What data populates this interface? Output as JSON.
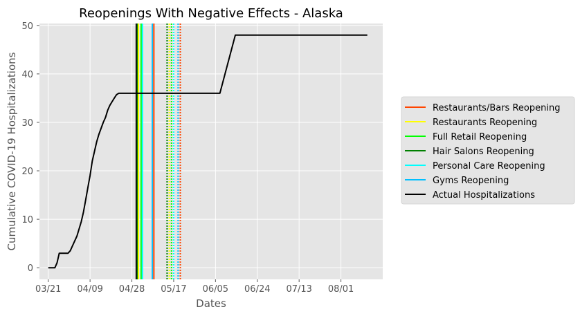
{
  "chart_data": {
    "type": "line",
    "title": "Reopenings With Negative Effects - Alaska",
    "xlabel": "Dates",
    "ylabel": "Cumulative COVID-19 Hospitalizations",
    "ylim": [
      -2.4,
      50.4
    ],
    "yticks": [
      0,
      10,
      20,
      30,
      40,
      50
    ],
    "x_start_date": "2020-03-21",
    "xlim": [
      -4,
      152
    ],
    "xticks": [
      {
        "day": 0,
        "label": "03/21"
      },
      {
        "day": 19,
        "label": "04/09"
      },
      {
        "day": 38,
        "label": "04/28"
      },
      {
        "day": 57,
        "label": "05/17"
      },
      {
        "day": 76,
        "label": "06/05"
      },
      {
        "day": 95,
        "label": "06/24"
      },
      {
        "day": 114,
        "label": "07/13"
      },
      {
        "day": 133,
        "label": "08/01"
      }
    ],
    "grid": true,
    "legend_position": "outside-right",
    "series": [
      {
        "name": "Actual Hospitalizations",
        "color": "#000000",
        "points": [
          [
            0,
            0
          ],
          [
            3,
            0
          ],
          [
            4,
            1
          ],
          [
            5,
            3
          ],
          [
            9,
            3
          ],
          [
            10,
            3.5
          ],
          [
            11,
            4.5
          ],
          [
            12,
            5.5
          ],
          [
            13,
            6.5
          ],
          [
            15,
            9.5
          ],
          [
            16,
            11.5
          ],
          [
            17,
            14
          ],
          [
            18,
            16.5
          ],
          [
            19,
            19
          ],
          [
            20,
            22
          ],
          [
            21,
            24
          ],
          [
            22,
            26
          ],
          [
            23,
            27.5
          ],
          [
            25,
            30
          ],
          [
            26,
            31
          ],
          [
            27,
            32.5
          ],
          [
            28,
            33.5
          ],
          [
            30,
            35
          ],
          [
            31,
            35.7
          ],
          [
            32,
            36
          ],
          [
            78,
            36
          ],
          [
            85,
            48
          ],
          [
            145,
            48
          ]
        ]
      }
    ],
    "reopenings": [
      {
        "name": "Restaurants/Bars Reopening",
        "color": "#ff4500"
      },
      {
        "name": "Restaurants Reopening",
        "color": "#ffff00"
      },
      {
        "name": "Full Retail Reopening",
        "color": "#00ff00"
      },
      {
        "name": "Hair Salons Reopening",
        "color": "#008000"
      },
      {
        "name": "Personal Care Reopening",
        "color": "#00ffff"
      },
      {
        "name": "Gyms Reopening",
        "color": "#00bfff"
      }
    ],
    "vlines": [
      {
        "day": 40,
        "color": "#000000",
        "style": "solid"
      },
      {
        "day": 40.6,
        "color": "#008000",
        "style": "solid"
      },
      {
        "day": 41,
        "color": "#ffff00",
        "style": "solid"
      },
      {
        "day": 42.2,
        "color": "#00ff00",
        "style": "solid"
      },
      {
        "day": 42.8,
        "color": "#00ffff",
        "style": "solid"
      },
      {
        "day": 47.3,
        "color": "#00bfff",
        "style": "solid"
      },
      {
        "day": 48,
        "color": "#ff4500",
        "style": "solid"
      },
      {
        "day": 54,
        "color": "#008000",
        "style": "dotted"
      },
      {
        "day": 55,
        "color": "#ffff00",
        "style": "dotted"
      },
      {
        "day": 56,
        "color": "#00ff00",
        "style": "dotted"
      },
      {
        "day": 57,
        "color": "#00ffff",
        "style": "dotted"
      },
      {
        "day": 59,
        "color": "#00bfff",
        "style": "dotted"
      },
      {
        "day": 60,
        "color": "#ff4500",
        "style": "dotted"
      }
    ],
    "legend": [
      {
        "label": "Restaurants/Bars Reopening",
        "color": "#ff4500"
      },
      {
        "label": "Restaurants Reopening",
        "color": "#ffff00"
      },
      {
        "label": "Full Retail Reopening",
        "color": "#00ff00"
      },
      {
        "label": "Hair Salons Reopening",
        "color": "#008000"
      },
      {
        "label": "Personal Care Reopening",
        "color": "#00ffff"
      },
      {
        "label": "Gyms Reopening",
        "color": "#00bfff"
      },
      {
        "label": "Actual Hospitalizations",
        "color": "#000000"
      }
    ],
    "colors": {
      "plot_background": "#e5e5e5",
      "grid": "#ffffff",
      "tick": "#555555"
    }
  }
}
